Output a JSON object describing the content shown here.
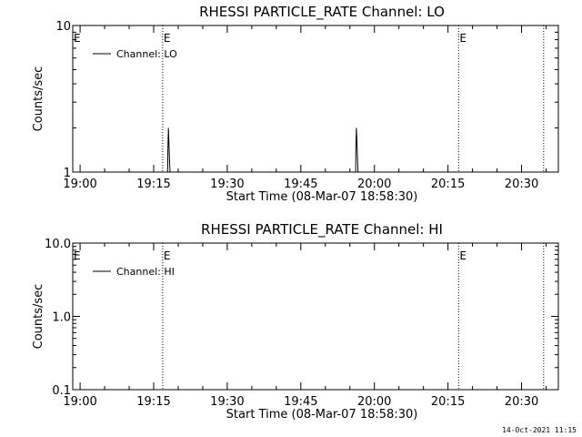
{
  "footer": {
    "timestamp": "14-Oct-2021 11:15"
  },
  "chart_data": [
    {
      "type": "line",
      "title": "RHESSI PARTICLE_RATE Channel: LO",
      "xlabel": "Start Time (08-Mar-07 18:58:30)",
      "ylabel": "Counts/sec",
      "y_scale": "log",
      "ylim": [
        1,
        10
      ],
      "y_ticks": [
        1,
        10
      ],
      "y_tick_labels": [
        "1",
        "10"
      ],
      "xlim": [
        "18:58:30",
        "20:37:30"
      ],
      "x_ticks": [
        "19:00",
        "19:15",
        "19:30",
        "19:45",
        "20:00",
        "20:15",
        "20:30"
      ],
      "grid": false,
      "legend": {
        "position": "top-left",
        "entries": [
          "Channel: LO"
        ]
      },
      "series": [
        {
          "name": "Channel: LO",
          "x": [
            "18:58:30",
            "19:17:50",
            "19:17:55",
            "19:18:00",
            "19:18:08",
            "19:18:14",
            "19:18:20",
            "19:56:10",
            "19:56:14",
            "19:56:20",
            "19:56:28",
            "19:56:34",
            "19:56:40",
            "20:37:30"
          ],
          "y": [
            1,
            1,
            1.5,
            2.0,
            1.5,
            1.2,
            1,
            1,
            1.5,
            2.0,
            1.5,
            1.2,
            1,
            1
          ]
        }
      ],
      "markers": [
        {
          "x": "19:16:50",
          "label": "E"
        },
        {
          "x": "20:17:10",
          "label": "E"
        },
        {
          "x": "20:34:30",
          "label": ""
        }
      ],
      "edge_label": "E"
    },
    {
      "type": "line",
      "title": "RHESSI PARTICLE_RATE Channel: HI",
      "xlabel": "Start Time (08-Mar-07 18:58:30)",
      "ylabel": "Counts/sec",
      "y_scale": "log",
      "ylim": [
        0.1,
        10
      ],
      "y_ticks": [
        0.1,
        1,
        10
      ],
      "y_tick_labels": [
        "0.1",
        "1.0",
        "10.0"
      ],
      "xlim": [
        "18:58:30",
        "20:37:30"
      ],
      "x_ticks": [
        "19:00",
        "19:15",
        "19:30",
        "19:45",
        "20:00",
        "20:15",
        "20:30"
      ],
      "grid": false,
      "legend": {
        "position": "top-left",
        "entries": [
          "Channel: HI"
        ]
      },
      "series": [
        {
          "name": "Channel: HI",
          "x": [],
          "y": []
        }
      ],
      "markers": [
        {
          "x": "19:16:50",
          "label": "E"
        },
        {
          "x": "20:17:10",
          "label": "E"
        },
        {
          "x": "20:34:30",
          "label": ""
        }
      ],
      "edge_label": "E"
    }
  ]
}
